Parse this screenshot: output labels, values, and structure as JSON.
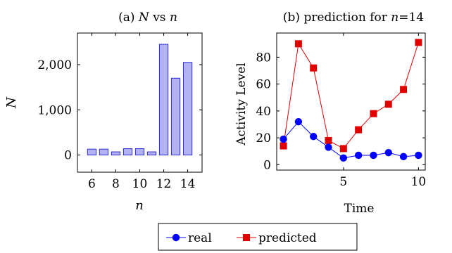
{
  "chart_data": [
    {
      "type": "bar",
      "title": "(a) N vs n",
      "title_prefix": "(a) ",
      "title_var1": "N",
      "title_mid": " vs ",
      "title_var2": "n",
      "xlabel": "n",
      "ylabel": "N",
      "categories": [
        6,
        7,
        8,
        9,
        10,
        11,
        12,
        13,
        14
      ],
      "values": [
        130,
        130,
        70,
        140,
        140,
        70,
        2450,
        1700,
        2050
      ],
      "xticks": [
        "6",
        "8",
        "10",
        "12",
        "14"
      ],
      "xtick_values": [
        6,
        8,
        10,
        12,
        14
      ],
      "yticks": [
        "0",
        "1,000",
        "2,000"
      ],
      "ytick_values": [
        0,
        1000,
        2000
      ],
      "xlim": [
        4.8,
        15.2
      ],
      "ylim": [
        -380,
        2700
      ],
      "bar_fill": "#b3b3f4",
      "bar_stroke": "#2b2bd6",
      "grid": false
    },
    {
      "type": "line",
      "title": "(b) prediction for n=14",
      "title_prefix": "(b) prediction for ",
      "title_var": "n",
      "title_suffix": "=14",
      "xlabel": "Time",
      "ylabel": "Activity Level",
      "xticks": [
        "5",
        "10"
      ],
      "xtick_values": [
        5,
        10
      ],
      "yticks": [
        "0",
        "20",
        "40",
        "60",
        "80"
      ],
      "ytick_values": [
        0,
        20,
        40,
        60,
        80
      ],
      "xlim": [
        0.55,
        10.45
      ],
      "ylim": [
        -4,
        98
      ],
      "grid": false,
      "x": [
        1,
        2,
        3,
        4,
        5,
        6,
        7,
        8,
        9,
        10
      ],
      "series": [
        {
          "name": "real",
          "values": [
            19,
            32,
            21,
            13,
            5,
            7,
            7,
            9,
            6,
            7
          ],
          "color": "#0000ff",
          "marker": "circle"
        },
        {
          "name": "predicted",
          "values": [
            14,
            90,
            72,
            18,
            12,
            26,
            38,
            45,
            56,
            91
          ],
          "color": "#e00000",
          "marker": "square"
        }
      ],
      "legend": "bottom-center"
    }
  ]
}
